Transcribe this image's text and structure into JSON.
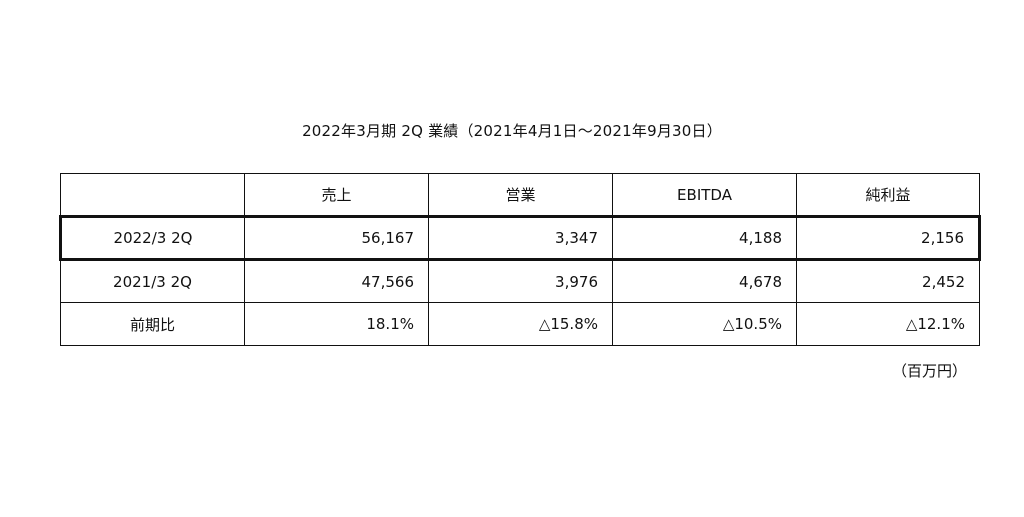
{
  "title": "2022年3月期 2Q 業績（2021年4月1日〜2021年9月30日）",
  "table": {
    "headers": [
      "",
      "売上",
      "営業",
      "EBITDA",
      "純利益"
    ],
    "rows": [
      {
        "label": "2022/3 2Q",
        "values": [
          "56,167",
          "3,347",
          "4,188",
          "2,156"
        ]
      },
      {
        "label": "2021/3 2Q",
        "values": [
          "47,566",
          "3,976",
          "4,678",
          "2,452"
        ]
      },
      {
        "label": "前期比",
        "values": [
          "18.1%",
          "△15.8%",
          "△10.5%",
          "△12.1%"
        ]
      }
    ]
  },
  "unit": "（百万円）"
}
